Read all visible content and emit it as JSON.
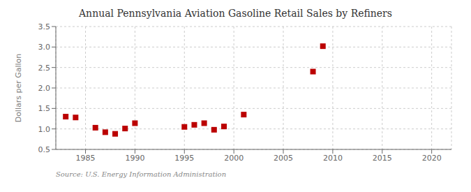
{
  "chart_data": {
    "type": "scatter",
    "title": "Annual Pennsylvania Aviation Gasoline Retail Sales by Refiners",
    "ylabel": "Dollars per Gallon",
    "annotations": [
      "Source: U.S. Energy Information Administration"
    ],
    "x": [
      1983,
      1984,
      1986,
      1987,
      1988,
      1989,
      1990,
      1995,
      1996,
      1997,
      1998,
      1999,
      2001,
      2008,
      2009
    ],
    "values": [
      1.3,
      1.28,
      1.03,
      0.92,
      0.88,
      1.01,
      1.14,
      1.05,
      1.1,
      1.14,
      0.98,
      1.06,
      1.35,
      2.4,
      3.02
    ],
    "color": "#bb0000",
    "marker": "square",
    "xlim": [
      1982,
      2022
    ],
    "xticks": [
      1985,
      1990,
      1995,
      2000,
      2005,
      2010,
      2015,
      2020
    ],
    "ylim": [
      0.5,
      3.5
    ],
    "yticks": [
      0.5,
      {
        "value": 1.0,
        "label": "1.0"
      },
      1.5,
      {
        "value": 2.0,
        "label": "2.0"
      },
      2.5,
      {
        "value": 3.0,
        "label": "3.0"
      },
      3.5
    ],
    "grid": true
  }
}
